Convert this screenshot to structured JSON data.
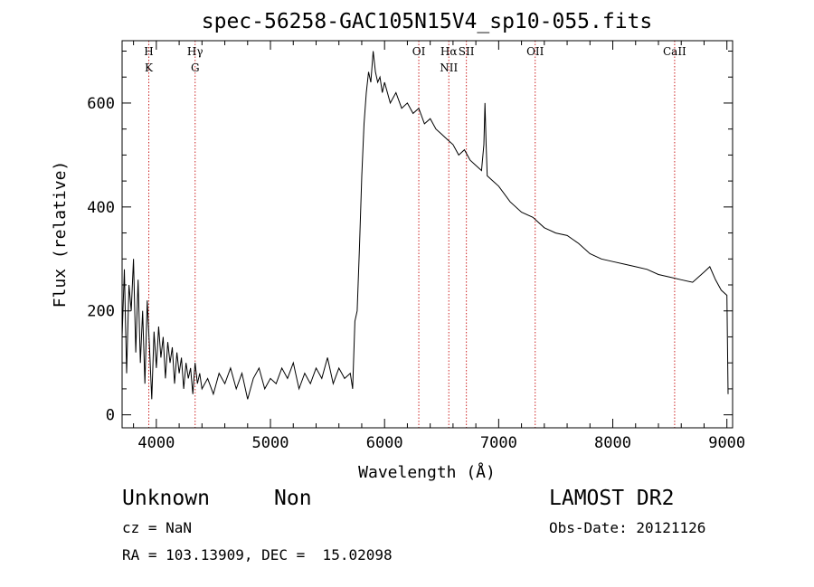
{
  "chart_data": {
    "type": "line",
    "title": "spec-56258-GAC105N15V4_sp10-055.fits",
    "xlabel": "Wavelength (Å)",
    "ylabel": "Flux (relative)",
    "xlim": [
      3700,
      9050
    ],
    "ylim": [
      -25,
      720
    ],
    "x_ticks": [
      4000,
      5000,
      6000,
      7000,
      8000,
      9000
    ],
    "y_ticks": [
      0,
      200,
      400,
      600
    ],
    "grid": false,
    "series": [
      {
        "line_color": "#000000",
        "points": [
          [
            3700,
            150
          ],
          [
            3720,
            280
          ],
          [
            3740,
            80
          ],
          [
            3760,
            250
          ],
          [
            3780,
            200
          ],
          [
            3800,
            300
          ],
          [
            3820,
            120
          ],
          [
            3840,
            260
          ],
          [
            3860,
            100
          ],
          [
            3880,
            200
          ],
          [
            3900,
            60
          ],
          [
            3920,
            220
          ],
          [
            3940,
            130
          ],
          [
            3960,
            30
          ],
          [
            3980,
            160
          ],
          [
            4000,
            90
          ],
          [
            4020,
            170
          ],
          [
            4040,
            110
          ],
          [
            4060,
            150
          ],
          [
            4080,
            70
          ],
          [
            4100,
            140
          ],
          [
            4120,
            100
          ],
          [
            4140,
            130
          ],
          [
            4160,
            60
          ],
          [
            4180,
            120
          ],
          [
            4200,
            80
          ],
          [
            4220,
            110
          ],
          [
            4240,
            50
          ],
          [
            4260,
            100
          ],
          [
            4280,
            70
          ],
          [
            4300,
            90
          ],
          [
            4320,
            40
          ],
          [
            4340,
            100
          ],
          [
            4360,
            60
          ],
          [
            4380,
            80
          ],
          [
            4400,
            50
          ],
          [
            4450,
            70
          ],
          [
            4500,
            40
          ],
          [
            4550,
            80
          ],
          [
            4600,
            60
          ],
          [
            4650,
            90
          ],
          [
            4700,
            50
          ],
          [
            4750,
            80
          ],
          [
            4800,
            30
          ],
          [
            4850,
            70
          ],
          [
            4900,
            90
          ],
          [
            4950,
            50
          ],
          [
            5000,
            70
          ],
          [
            5050,
            60
          ],
          [
            5100,
            90
          ],
          [
            5150,
            70
          ],
          [
            5200,
            100
          ],
          [
            5250,
            50
          ],
          [
            5300,
            80
          ],
          [
            5350,
            60
          ],
          [
            5400,
            90
          ],
          [
            5450,
            70
          ],
          [
            5500,
            110
          ],
          [
            5550,
            60
          ],
          [
            5600,
            90
          ],
          [
            5650,
            70
          ],
          [
            5700,
            80
          ],
          [
            5720,
            50
          ],
          [
            5740,
            180
          ],
          [
            5760,
            200
          ],
          [
            5780,
            320
          ],
          [
            5800,
            460
          ],
          [
            5820,
            560
          ],
          [
            5840,
            620
          ],
          [
            5860,
            660
          ],
          [
            5880,
            640
          ],
          [
            5900,
            700
          ],
          [
            5920,
            660
          ],
          [
            5940,
            640
          ],
          [
            5960,
            650
          ],
          [
            5980,
            620
          ],
          [
            6000,
            640
          ],
          [
            6050,
            600
          ],
          [
            6100,
            620
          ],
          [
            6150,
            590
          ],
          [
            6200,
            600
          ],
          [
            6250,
            580
          ],
          [
            6300,
            590
          ],
          [
            6350,
            560
          ],
          [
            6400,
            570
          ],
          [
            6450,
            550
          ],
          [
            6500,
            540
          ],
          [
            6550,
            530
          ],
          [
            6600,
            520
          ],
          [
            6650,
            500
          ],
          [
            6700,
            510
          ],
          [
            6750,
            490
          ],
          [
            6800,
            480
          ],
          [
            6850,
            470
          ],
          [
            6870,
            520
          ],
          [
            6880,
            600
          ],
          [
            6890,
            520
          ],
          [
            6900,
            460
          ],
          [
            6950,
            450
          ],
          [
            7000,
            440
          ],
          [
            7100,
            410
          ],
          [
            7200,
            390
          ],
          [
            7300,
            380
          ],
          [
            7400,
            360
          ],
          [
            7500,
            350
          ],
          [
            7600,
            345
          ],
          [
            7700,
            330
          ],
          [
            7800,
            310
          ],
          [
            7900,
            300
          ],
          [
            8000,
            295
          ],
          [
            8100,
            290
          ],
          [
            8200,
            285
          ],
          [
            8300,
            280
          ],
          [
            8400,
            270
          ],
          [
            8500,
            265
          ],
          [
            8600,
            260
          ],
          [
            8700,
            255
          ],
          [
            8800,
            275
          ],
          [
            8850,
            285
          ],
          [
            8900,
            260
          ],
          [
            8950,
            240
          ],
          [
            9000,
            230
          ],
          [
            9010,
            40
          ]
        ]
      }
    ],
    "lines": [
      {
        "labels": [
          "H",
          "K"
        ],
        "x": 3934
      },
      {
        "labels": [
          "Hγ",
          "G"
        ],
        "x": 4340
      },
      {
        "labels": [
          "OI"
        ],
        "x": 6300
      },
      {
        "labels": [
          "Hα",
          "NII"
        ],
        "x": 6563
      },
      {
        "labels": [
          "SII"
        ],
        "x": 6717
      },
      {
        "labels": [
          "OII"
        ],
        "x": 7320
      },
      {
        "labels": [
          "CaII"
        ],
        "x": 8542
      }
    ],
    "line_color": "#cc2222"
  },
  "info": {
    "class": "Unknown",
    "subclass": "Non",
    "cz": "cz = NaN",
    "radec": "RA = 103.13909, DEC =  15.02098",
    "survey": "LAMOST DR2",
    "obsdate": "Obs-Date: 20121126"
  }
}
